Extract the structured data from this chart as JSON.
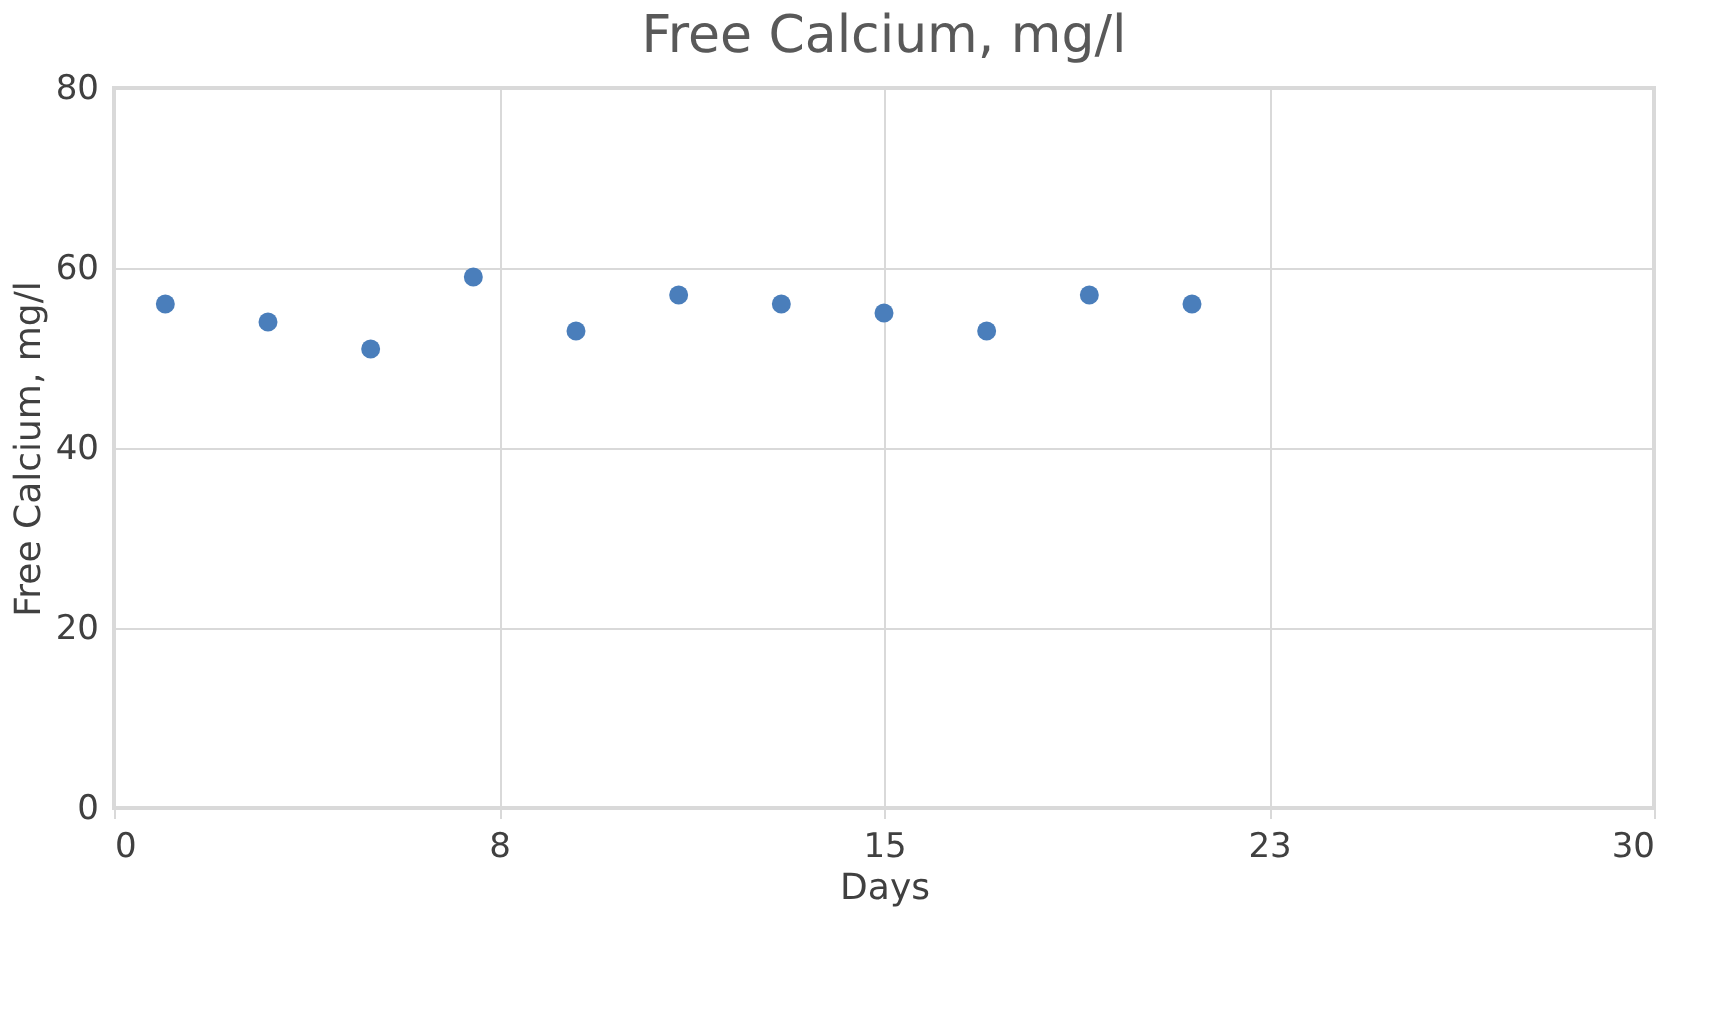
{
  "chart_data": {
    "type": "scatter",
    "title": "Free Calcium, mg/l",
    "xlabel": "Days",
    "ylabel": "Free Calcium, mg/l",
    "x": [
      1,
      3,
      5,
      7,
      9,
      11,
      13,
      15,
      17,
      19,
      21
    ],
    "series": [
      {
        "color": "#4a7ebb",
        "values": [
          56,
          54,
          51,
          59,
          53,
          57,
          56,
          55,
          53,
          57,
          56
        ]
      }
    ],
    "xlim": [
      0,
      30
    ],
    "xticks": [
      0,
      {
        "value": 7.5,
        "label": "8"
      },
      15,
      {
        "value": 22.5,
        "label": "23"
      },
      30
    ],
    "ylim": [
      0,
      80
    ],
    "yticks": [
      0,
      20,
      40,
      60,
      80
    ],
    "grid": true,
    "marker": "circle"
  }
}
